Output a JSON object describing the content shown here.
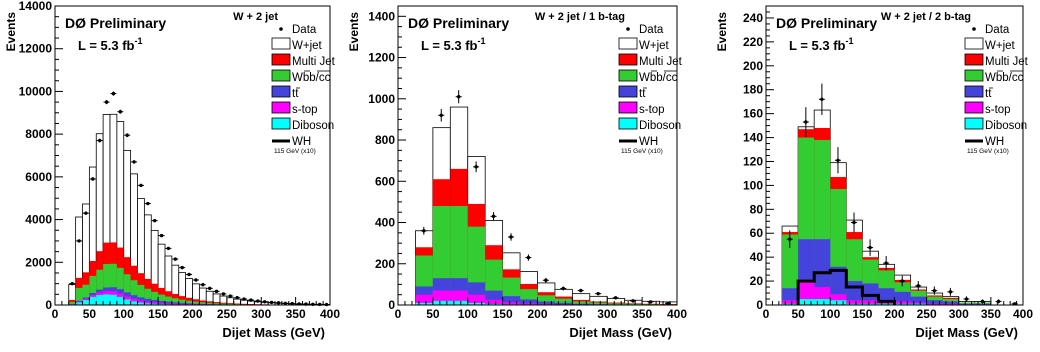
{
  "chart_data": [
    {
      "type": "bar",
      "stacked": true,
      "title": "W + 2 jet",
      "experiment": "DØ Preliminary",
      "luminosity": "L = 5.3 fb",
      "luminosity_sup": "-1",
      "xlabel": "Dijet Mass (GeV)",
      "ylabel": "Events",
      "xlim": [
        0,
        400
      ],
      "ylim": [
        0,
        14000
      ],
      "xticks": [
        0,
        50,
        100,
        150,
        200,
        250,
        300,
        350,
        400
      ],
      "yticks": [
        0,
        2000,
        4000,
        6000,
        8000,
        10000,
        12000,
        14000
      ],
      "bin_width": 10,
      "bin_low": [
        20,
        30,
        40,
        50,
        60,
        70,
        80,
        90,
        100,
        110,
        120,
        130,
        140,
        150,
        160,
        170,
        180,
        190,
        200,
        210,
        220,
        230,
        240,
        250,
        260,
        270,
        280,
        290,
        300,
        310,
        320,
        330,
        340,
        350,
        360,
        370,
        380,
        390
      ],
      "series": [
        {
          "name": "W+jet",
          "values": [
            720,
            2850,
            3200,
            4400,
            5500,
            6000,
            6000,
            5900,
            5000,
            4300,
            3500,
            3000,
            2500,
            2050,
            1650,
            1350,
            1100,
            900,
            720,
            580,
            470,
            380,
            310,
            250,
            205,
            170,
            140,
            115,
            95,
            78,
            64,
            52,
            43,
            35,
            29,
            24,
            20,
            16
          ]
        },
        {
          "name": "Multi Jet",
          "values": [
            90,
            470,
            580,
            700,
            870,
            1000,
            1000,
            950,
            800,
            680,
            550,
            460,
            380,
            310,
            250,
            200,
            165,
            135,
            110,
            88,
            72,
            58,
            47,
            38,
            31,
            26,
            21,
            17,
            14,
            11,
            9,
            7,
            6,
            5,
            4,
            3,
            3,
            2
          ]
        },
        {
          "name": "Wbb/cc",
          "values": [
            100,
            600,
            600,
            800,
            930,
            1100,
            1100,
            1000,
            850,
            700,
            580,
            470,
            380,
            300,
            240,
            190,
            150,
            120,
            95,
            75,
            60,
            48,
            38,
            30,
            24,
            19,
            15,
            12,
            10,
            8,
            6,
            5,
            4,
            3,
            3,
            2,
            2,
            1
          ]
        },
        {
          "name": "tt",
          "values": [
            10,
            40,
            60,
            90,
            130,
            170,
            190,
            200,
            190,
            170,
            150,
            130,
            110,
            90,
            75,
            62,
            50,
            40,
            32,
            26,
            21,
            17,
            13,
            10,
            8,
            6,
            5,
            4,
            3,
            2,
            2,
            1,
            1,
            1,
            0,
            0,
            0,
            0
          ]
        },
        {
          "name": "s-top",
          "values": [
            10,
            40,
            60,
            90,
            120,
            150,
            160,
            160,
            140,
            120,
            100,
            85,
            70,
            57,
            46,
            37,
            30,
            24,
            19,
            15,
            12,
            9,
            7,
            6,
            4,
            3,
            3,
            2,
            2,
            1,
            1,
            1,
            0,
            0,
            0,
            0,
            0,
            0
          ]
        },
        {
          "name": "Diboson",
          "values": [
            30,
            120,
            230,
            380,
            470,
            500,
            480,
            380,
            260,
            170,
            110,
            75,
            55,
            42,
            33,
            26,
            21,
            17,
            13,
            10,
            8,
            6,
            5,
            4,
            3,
            2,
            2,
            1,
            1,
            1,
            0,
            0,
            0,
            0,
            0,
            0,
            0,
            0
          ]
        }
      ],
      "data": {
        "name": "Data",
        "x": [
          25,
          35,
          45,
          55,
          65,
          75,
          85,
          95,
          105,
          115,
          125,
          135,
          145,
          155,
          165,
          175,
          185,
          195,
          205,
          215,
          225,
          235,
          245,
          255,
          265,
          275,
          285,
          295,
          305,
          315,
          325,
          335,
          345,
          355,
          365,
          375,
          385,
          395
        ],
        "y": [
          1000,
          3000,
          4300,
          5900,
          7700,
          9500,
          9900,
          9050,
          7950,
          6700,
          5600,
          4750,
          3950,
          3250,
          2650,
          2150,
          1750,
          1430,
          1170,
          950,
          780,
          640,
          520,
          420,
          340,
          280,
          230,
          185,
          150,
          120,
          100,
          80,
          65,
          52,
          42,
          34,
          28,
          22
        ]
      },
      "signal": {
        "name": "WH",
        "note": "115 GeV (x10)",
        "x": [
          30,
          60,
          90,
          120,
          150,
          180
        ],
        "y": [
          0,
          0,
          0,
          0,
          0,
          0
        ]
      },
      "legend_position": "top-right"
    },
    {
      "type": "bar",
      "stacked": true,
      "title": "W + 2 jet / 1 b-tag",
      "experiment": "DØ Preliminary",
      "luminosity": "L = 5.3 fb",
      "luminosity_sup": "-1",
      "xlabel": "Dijet Mass (GeV)",
      "ylabel": "Events",
      "xlim": [
        0,
        400
      ],
      "ylim": [
        0,
        1450
      ],
      "xticks": [
        0,
        50,
        100,
        150,
        200,
        250,
        300,
        350,
        400
      ],
      "yticks": [
        0,
        200,
        400,
        600,
        800,
        1000,
        1200,
        1400
      ],
      "bin_width": 25,
      "bin_low": [
        25,
        50,
        75,
        100,
        125,
        150,
        175,
        200,
        225,
        250,
        275,
        300,
        325,
        350,
        375
      ],
      "series": [
        {
          "name": "W+jet",
          "values": [
            80,
            250,
            300,
            230,
            120,
            80,
            60,
            45,
            35,
            30,
            25,
            20,
            15,
            12,
            10
          ]
        },
        {
          "name": "Multi Jet",
          "values": [
            40,
            130,
            180,
            110,
            70,
            40,
            25,
            15,
            10,
            7,
            5,
            4,
            3,
            2,
            2
          ]
        },
        {
          "name": "Wbb/cc",
          "values": [
            150,
            350,
            350,
            270,
            150,
            90,
            50,
            30,
            20,
            12,
            8,
            6,
            4,
            3,
            2
          ]
        },
        {
          "name": "tt",
          "values": [
            40,
            60,
            60,
            60,
            45,
            30,
            20,
            13,
            8,
            5,
            3,
            2,
            1,
            1,
            1
          ]
        },
        {
          "name": "s-top",
          "values": [
            40,
            50,
            50,
            40,
            20,
            10,
            5,
            3,
            2,
            1,
            1,
            0,
            0,
            0,
            0
          ]
        },
        {
          "name": "Diboson",
          "values": [
            10,
            20,
            20,
            10,
            5,
            3,
            2,
            1,
            1,
            0,
            0,
            0,
            0,
            0,
            0
          ]
        }
      ],
      "data": {
        "name": "Data",
        "x": [
          37,
          62,
          87,
          112,
          137,
          162,
          187,
          212,
          237,
          262,
          287,
          312,
          337,
          362,
          387
        ],
        "y": [
          360,
          920,
          1010,
          670,
          430,
          330,
          230,
          120,
          80,
          70,
          55,
          35,
          20,
          15,
          8
        ]
      },
      "signal": {
        "name": "WH",
        "note": "115 GeV (x10)",
        "x": [
          50,
          75,
          100,
          125,
          150,
          175
        ],
        "y": [
          0,
          0,
          0,
          0,
          0,
          0
        ]
      },
      "legend_position": "top-right"
    },
    {
      "type": "bar",
      "stacked": true,
      "title": "W + 2 jet / 2 b-tag",
      "experiment": "DØ Preliminary",
      "luminosity": "L = 5.3 fb",
      "luminosity_sup": "-1",
      "xlabel": "Dijet Mass (GeV)",
      "ylabel": "Events",
      "xlim": [
        0,
        400
      ],
      "ylim": [
        0,
        250
      ],
      "xticks": [
        0,
        50,
        100,
        150,
        200,
        250,
        300,
        350,
        400
      ],
      "yticks": [
        0,
        20,
        40,
        60,
        80,
        100,
        120,
        140,
        160,
        180,
        200,
        220,
        240
      ],
      "bin_width": 25,
      "bin_low": [
        25,
        50,
        75,
        100,
        125,
        150,
        175,
        200,
        225,
        250,
        275,
        300,
        325,
        350,
        375
      ],
      "series": [
        {
          "name": "W+jet",
          "values": [
            5,
            2,
            15,
            12,
            10,
            5,
            3,
            4,
            2,
            2,
            1,
            1,
            1,
            0,
            0
          ]
        },
        {
          "name": "Multi Jet",
          "values": [
            2,
            7,
            10,
            10,
            6,
            2,
            2,
            2,
            1,
            1,
            1,
            0,
            0,
            0,
            0
          ]
        },
        {
          "name": "Wbb/cc",
          "values": [
            45,
            85,
            83,
            65,
            35,
            20,
            15,
            8,
            5,
            3,
            2,
            1,
            1,
            0,
            0
          ]
        },
        {
          "name": "tt",
          "values": [
            10,
            35,
            40,
            23,
            16,
            14,
            11,
            8,
            5,
            3,
            2,
            1,
            1,
            0,
            0
          ]
        },
        {
          "name": "s-top",
          "values": [
            3,
            15,
            10,
            5,
            3,
            3,
            2,
            2,
            1,
            1,
            1,
            0,
            0,
            0,
            0
          ]
        },
        {
          "name": "Diboson",
          "values": [
            1,
            5,
            5,
            4,
            1,
            1,
            1,
            1,
            1,
            0,
            0,
            0,
            0,
            0,
            0
          ]
        }
      ],
      "data": {
        "name": "Data",
        "x": [
          37,
          62,
          87,
          112,
          137,
          162,
          187,
          212,
          237,
          262,
          287,
          312,
          337,
          362,
          387
        ],
        "y": [
          55,
          153,
          172,
          121,
          69,
          48,
          35,
          20,
          16,
          12,
          11,
          5,
          3,
          3,
          1
        ]
      },
      "signal": {
        "name": "WH",
        "note": "115 GeV (x10)",
        "x": [
          50,
          75,
          100,
          125,
          150,
          175
        ],
        "y": [
          20,
          27,
          29,
          15,
          8,
          3
        ]
      },
      "legend_position": "top-right"
    }
  ],
  "legend": {
    "entries": [
      {
        "key": "data",
        "label": "Data",
        "color": "#000000"
      },
      {
        "key": "wjet",
        "label": "W+jet",
        "color": "#ffffff"
      },
      {
        "key": "multijet",
        "label": "Multi Jet",
        "color": "#ff0000"
      },
      {
        "key": "wbb",
        "label": "Wbb/cc",
        "color": "#33cc33"
      },
      {
        "key": "tt",
        "label": "tt",
        "color": "#4444dd"
      },
      {
        "key": "stop",
        "label": "s-top",
        "color": "#ff00ff"
      },
      {
        "key": "diboson",
        "label": "Diboson",
        "color": "#00ffff"
      },
      {
        "key": "wh",
        "label": "WH",
        "color": "#000000"
      }
    ],
    "wh_note": "115 GeV (x10)"
  },
  "colors": [
    "#ffffff",
    "#ff0000",
    "#33cc33",
    "#4444dd",
    "#ff00ff",
    "#00ffff"
  ]
}
